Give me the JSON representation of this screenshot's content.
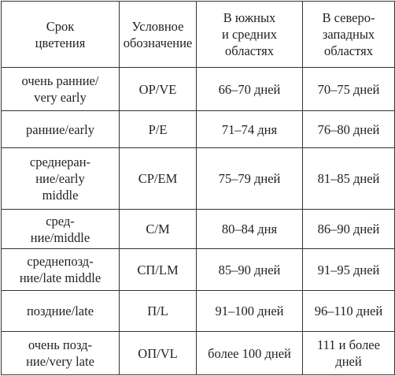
{
  "table": {
    "header": [
      "Срок\nцветения",
      "Условное\nобозначение",
      "В южных\nи средних\nобластях",
      "В северо-\nзападных\nобластях"
    ],
    "rows": [
      [
        "очень ранние/\nvery early",
        "OP/VE",
        "66–70 дней",
        "70–75 дней"
      ],
      [
        "ранние/early",
        "P/E",
        "71–74 дня",
        "76–80 дней"
      ],
      [
        "среднеран-\nние/early\nmiddle",
        "CP/EM",
        "75–79 дней",
        "81–85 дней"
      ],
      [
        "сред-\nние/middle",
        "C/M",
        "80–84 дня",
        "86–90 дней"
      ],
      [
        "среднепозд-\nние/late middle",
        "СП/LM",
        "85–90 дней",
        "91–95 дней"
      ],
      [
        "поздние/late",
        "П/L",
        "91–100 дней",
        "96–110 дней"
      ],
      [
        "очень позд-\nние/very late",
        "ОП/VL",
        "более 100 дней",
        "111 и более\nдней"
      ]
    ]
  }
}
